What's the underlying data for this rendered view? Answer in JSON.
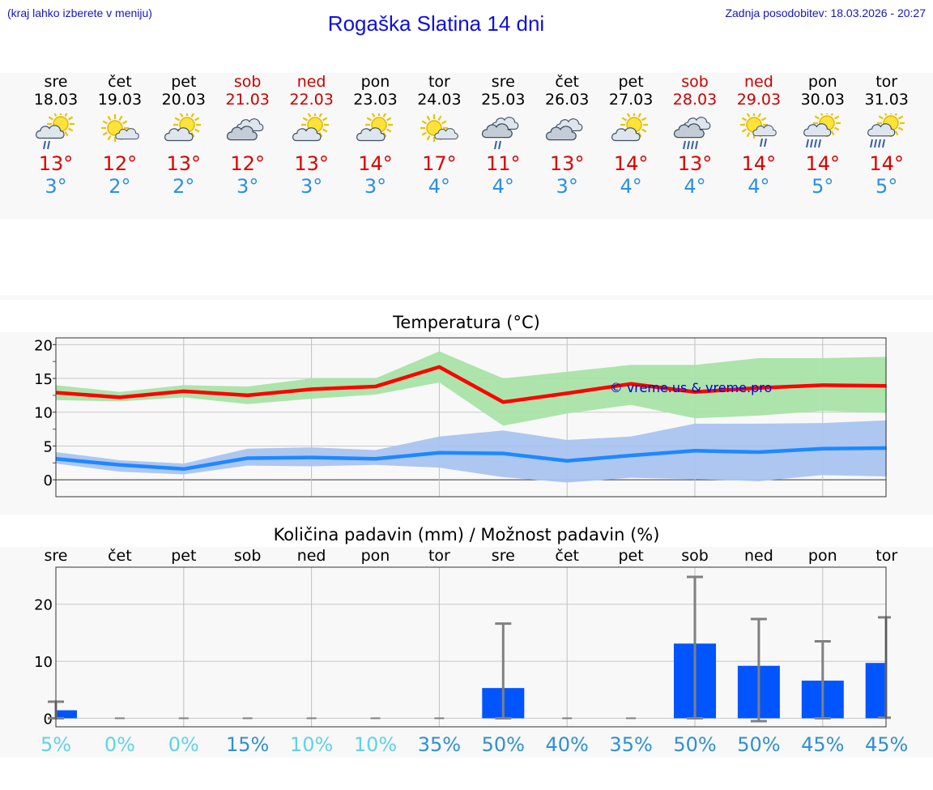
{
  "header": {
    "hint": "(kraj lahko izberete v meniju)",
    "title": "Rogaška Slatina 14 dni",
    "updated": "Zadnja posodobitev: 18.03.2026 - 20:27"
  },
  "colors": {
    "title": "#1010e0",
    "max_temp": "#dd0000",
    "min_temp": "#2a8fe8",
    "max_band": "#a8e3a8",
    "min_band": "#a9c4f0",
    "max_line": "#ff0000",
    "min_line": "#1e88ff",
    "bar": "#0055ff",
    "errorbar": "#808080"
  },
  "days": [
    {
      "name": "sre",
      "date": "18.03",
      "weekend": false,
      "icon": "partly-cloudy-light-rain-icon",
      "max": "13°",
      "min": "3°"
    },
    {
      "name": "čet",
      "date": "19.03",
      "weekend": false,
      "icon": "sunny-small-cloud-icon",
      "max": "12°",
      "min": "2°"
    },
    {
      "name": "pet",
      "date": "20.03",
      "weekend": false,
      "icon": "partly-cloudy-icon",
      "max": "13°",
      "min": "2°"
    },
    {
      "name": "sob",
      "date": "21.03",
      "weekend": true,
      "icon": "cloudy-icon",
      "max": "12°",
      "min": "3°"
    },
    {
      "name": "ned",
      "date": "22.03",
      "weekend": true,
      "icon": "partly-cloudy-icon",
      "max": "13°",
      "min": "3°"
    },
    {
      "name": "pon",
      "date": "23.03",
      "weekend": false,
      "icon": "partly-cloudy-icon",
      "max": "14°",
      "min": "3°"
    },
    {
      "name": "tor",
      "date": "24.03",
      "weekend": false,
      "icon": "sunny-small-cloud-icon",
      "max": "17°",
      "min": "4°"
    },
    {
      "name": "sre",
      "date": "25.03",
      "weekend": false,
      "icon": "cloudy-light-rain-icon",
      "max": "11°",
      "min": "4°"
    },
    {
      "name": "čet",
      "date": "26.03",
      "weekend": false,
      "icon": "cloudy-icon",
      "max": "13°",
      "min": "3°"
    },
    {
      "name": "pet",
      "date": "27.03",
      "weekend": false,
      "icon": "partly-cloudy-icon",
      "max": "14°",
      "min": "4°"
    },
    {
      "name": "sob",
      "date": "28.03",
      "weekend": true,
      "icon": "cloudy-rain-icon",
      "max": "13°",
      "min": "4°"
    },
    {
      "name": "ned",
      "date": "29.03",
      "weekend": true,
      "icon": "sunny-cloud-light-rain-icon",
      "max": "14°",
      "min": "4°"
    },
    {
      "name": "pon",
      "date": "30.03",
      "weekend": false,
      "icon": "partly-cloudy-rain-icon",
      "max": "14°",
      "min": "5°"
    },
    {
      "name": "tor",
      "date": "31.03",
      "weekend": false,
      "icon": "partly-cloudy-rain-icon",
      "max": "14°",
      "min": "5°"
    }
  ],
  "chart_data": [
    {
      "type": "line",
      "title": "Temperatura (°C)",
      "watermark": "© vreme.us & vreme.pro",
      "ylim": [
        -2.5,
        21
      ],
      "yticks": [
        0,
        5,
        10,
        15,
        20
      ],
      "grid": true,
      "series": [
        {
          "name": "max",
          "values": [
            12.9,
            12.2,
            13.1,
            12.5,
            13.4,
            13.8,
            16.7,
            11.5,
            12.8,
            14.2,
            13.0,
            13.6,
            14.0,
            13.9
          ],
          "band_low": [
            11.8,
            11.6,
            12.2,
            11.2,
            12.0,
            12.6,
            14.4,
            8.0,
            9.8,
            11.1,
            9.1,
            9.5,
            10.2,
            9.9
          ],
          "band_high": [
            14.0,
            13.0,
            14.0,
            13.8,
            15.0,
            15.0,
            19.0,
            15.0,
            16.0,
            17.0,
            17.0,
            18.0,
            18.0,
            18.2
          ]
        },
        {
          "name": "min",
          "values": [
            3.1,
            2.2,
            1.6,
            3.2,
            3.3,
            3.1,
            4.0,
            3.9,
            2.8,
            3.6,
            4.3,
            4.1,
            4.6,
            4.7
          ],
          "band_low": [
            2.4,
            1.2,
            0.8,
            2.1,
            2.0,
            2.2,
            1.8,
            0.4,
            -0.4,
            0.3,
            0.1,
            -0.2,
            0.7,
            0.5
          ],
          "band_high": [
            4.1,
            2.9,
            2.4,
            4.6,
            4.8,
            4.4,
            6.4,
            7.3,
            5.9,
            6.4,
            8.3,
            8.3,
            8.4,
            8.8
          ]
        }
      ]
    },
    {
      "type": "bar",
      "title": "Količina padavin (mm) / Možnost padavin (%)",
      "categories": [
        "sre",
        "čet",
        "pet",
        "sob",
        "ned",
        "pon",
        "tor",
        "sre",
        "čet",
        "pet",
        "sob",
        "ned",
        "pon",
        "tor"
      ],
      "ylim": [
        -1.5,
        26.5
      ],
      "yticks": [
        0,
        10,
        20
      ],
      "grid": true,
      "values": [
        1.4,
        0,
        0,
        0,
        0,
        0,
        0,
        5.3,
        0,
        0,
        13.1,
        9.2,
        6.6,
        9.7
      ],
      "error_low": [
        0,
        0,
        0,
        0,
        0,
        0,
        0,
        0,
        0,
        0,
        0,
        -0.5,
        0,
        0.1
      ],
      "error_high": [
        2.9,
        0,
        0,
        0,
        0,
        0,
        0,
        16.6,
        0,
        0,
        24.8,
        17.4,
        13.5,
        17.7
      ],
      "probability": [
        "5%",
        "0%",
        "0%",
        "15%",
        "10%",
        "10%",
        "35%",
        "50%",
        "40%",
        "35%",
        "50%",
        "50%",
        "45%",
        "45%"
      ]
    }
  ]
}
